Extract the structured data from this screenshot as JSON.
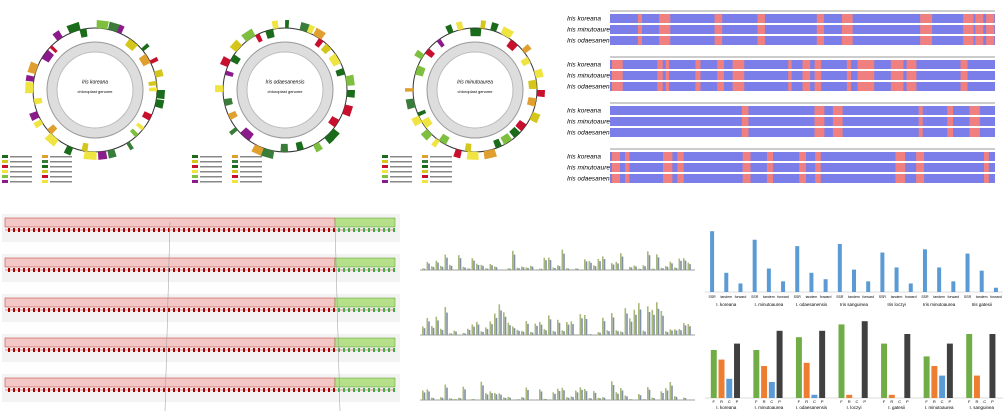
{
  "genome_maps": [
    {
      "name": "Iris koreana",
      "subtitle": "chloroplast genome"
    },
    {
      "name": "Iris odaesanensis",
      "subtitle": "chloroplast genome"
    },
    {
      "name": "Iris minutoaurea",
      "subtitle": "chloroplast genome"
    }
  ],
  "mvista": {
    "rows": [
      [
        "Iris koreana",
        "Iris minutoaurea",
        "Iris odaesanensis"
      ],
      [
        "Iris koreana",
        "Iris minutoaurea",
        "Iris odaesanensis"
      ],
      [
        "Iris koreana",
        "Iris minutoaurea",
        "Iris odaesanensis"
      ],
      [
        "Iris koreana",
        "Iris minutoaurea",
        "Iris odaesanensis"
      ]
    ]
  },
  "chart_data": [
    {
      "type": "bar",
      "color": "#5b9bd5",
      "ylim": [
        0,
        60
      ],
      "categories": [
        "SSR",
        "tandem",
        "forward",
        "SSR",
        "tandem",
        "forward",
        "SSR",
        "tandem",
        "forward",
        "SSR",
        "tandem",
        "forward",
        "SSR",
        "tandem",
        "forward",
        "SSR",
        "tandem",
        "forward",
        "SSR",
        "tandem",
        "forward"
      ],
      "values": [
        57,
        18,
        8,
        49,
        22,
        10,
        43,
        18,
        12,
        45,
        21,
        10,
        37,
        23,
        8,
        40,
        23,
        10,
        36,
        20,
        4
      ],
      "groups": [
        "I. koreana",
        "I. minutoaurea",
        "I. odaesanensis",
        "Iris sanguinea",
        "Iris loczyi",
        "Iris minutoaurea",
        "Iris gatesii"
      ]
    },
    {
      "type": "grouped-bar",
      "ylim": [
        0,
        25
      ],
      "categories": [
        "I. koreana",
        "I. minutoaurea",
        "I. odaesanensis",
        "I. loczyi",
        "I. gatesii",
        "I. minutoaurea",
        "I. sanguinea"
      ],
      "bar_labels": [
        "F",
        "R",
        "C",
        "P"
      ],
      "series": [
        {
          "color": "#70ad47",
          "values": [
            15,
            15,
            19,
            23,
            17,
            13,
            20
          ]
        },
        {
          "color": "#ed7d31",
          "values": [
            12,
            10,
            11,
            1,
            1,
            10,
            7
          ]
        },
        {
          "color": "#5b9bd5",
          "values": [
            6,
            5,
            1,
            0,
            0,
            7,
            0
          ]
        },
        {
          "color": "#404040",
          "values": [
            17,
            21,
            21,
            24,
            20,
            17,
            20
          ]
        }
      ]
    }
  ]
}
